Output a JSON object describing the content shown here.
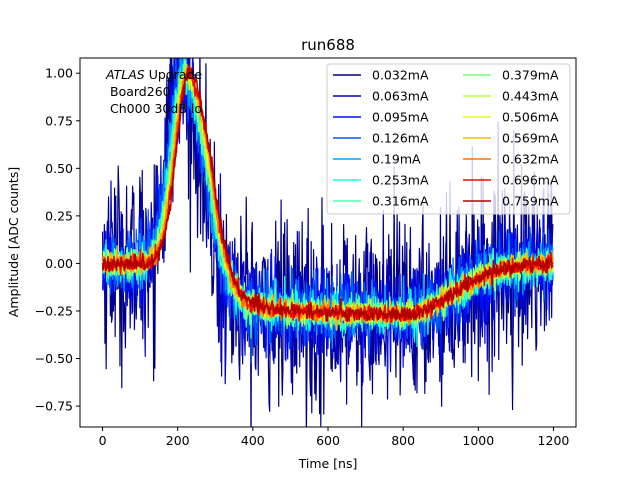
{
  "chart_data": {
    "type": "line",
    "title": "run688",
    "xlabel": "Time [ns]",
    "ylabel": "Amplitude [ADC counts]",
    "xlim": [
      -60,
      1260
    ],
    "ylim": [
      -0.86,
      1.08
    ],
    "x_ticks": [
      0,
      200,
      400,
      600,
      800,
      1000,
      1200
    ],
    "x_tick_labels": [
      "0",
      "200",
      "400",
      "600",
      "800",
      "1000",
      "1200"
    ],
    "y_ticks": [
      -0.75,
      -0.5,
      -0.25,
      0.0,
      0.25,
      0.5,
      0.75,
      1.0
    ],
    "y_tick_labels": [
      "−0.75",
      "−0.50",
      "−0.25",
      "0.00",
      "0.25",
      "0.50",
      "0.75",
      "1.00"
    ],
    "x_range": [
      0,
      1200
    ],
    "pulse_shape": {
      "peak_time": 205,
      "peak_amplitude": 1.0,
      "undershoot_min": -0.27,
      "undershoot_time": 800,
      "baseline": 0.0
    },
    "series": [
      {
        "name": "0.032mA",
        "color": "#000080",
        "noise": 0.26,
        "peak_shift": 0
      },
      {
        "name": "0.063mA",
        "color": "#0000c4",
        "noise": 0.17,
        "peak_shift": 2
      },
      {
        "name": "0.095mA",
        "color": "#0010ff",
        "noise": 0.12,
        "peak_shift": 4
      },
      {
        "name": "0.126mA",
        "color": "#0058ff",
        "noise": 0.09,
        "peak_shift": 6
      },
      {
        "name": "0.19mA",
        "color": "#00a4ff",
        "noise": 0.065,
        "peak_shift": 8
      },
      {
        "name": "0.253mA",
        "color": "#16ffe1",
        "noise": 0.05,
        "peak_shift": 10
      },
      {
        "name": "0.316mA",
        "color": "#49ffad",
        "noise": 0.042,
        "peak_shift": 12
      },
      {
        "name": "0.379mA",
        "color": "#7dff7a",
        "noise": 0.036,
        "peak_shift": 14
      },
      {
        "name": "0.443mA",
        "color": "#b0ff46",
        "noise": 0.032,
        "peak_shift": 16
      },
      {
        "name": "0.506mA",
        "color": "#e4ff13",
        "noise": 0.028,
        "peak_shift": 18
      },
      {
        "name": "0.569mA",
        "color": "#ffb900",
        "noise": 0.026,
        "peak_shift": 20
      },
      {
        "name": "0.632mA",
        "color": "#ff7300",
        "noise": 0.024,
        "peak_shift": 22
      },
      {
        "name": "0.696mA",
        "color": "#f10800",
        "noise": 0.022,
        "peak_shift": 24
      },
      {
        "name": "0.759mA",
        "color": "#b20000",
        "noise": 0.02,
        "peak_shift": 26
      }
    ],
    "legend": {
      "location": "upper right",
      "columns": 2
    },
    "annotation": {
      "line1_italic": "ATLAS",
      "line1_rest": " Upgrade",
      "line2": "Board260",
      "line3": "Ch000 30dB lo"
    }
  }
}
